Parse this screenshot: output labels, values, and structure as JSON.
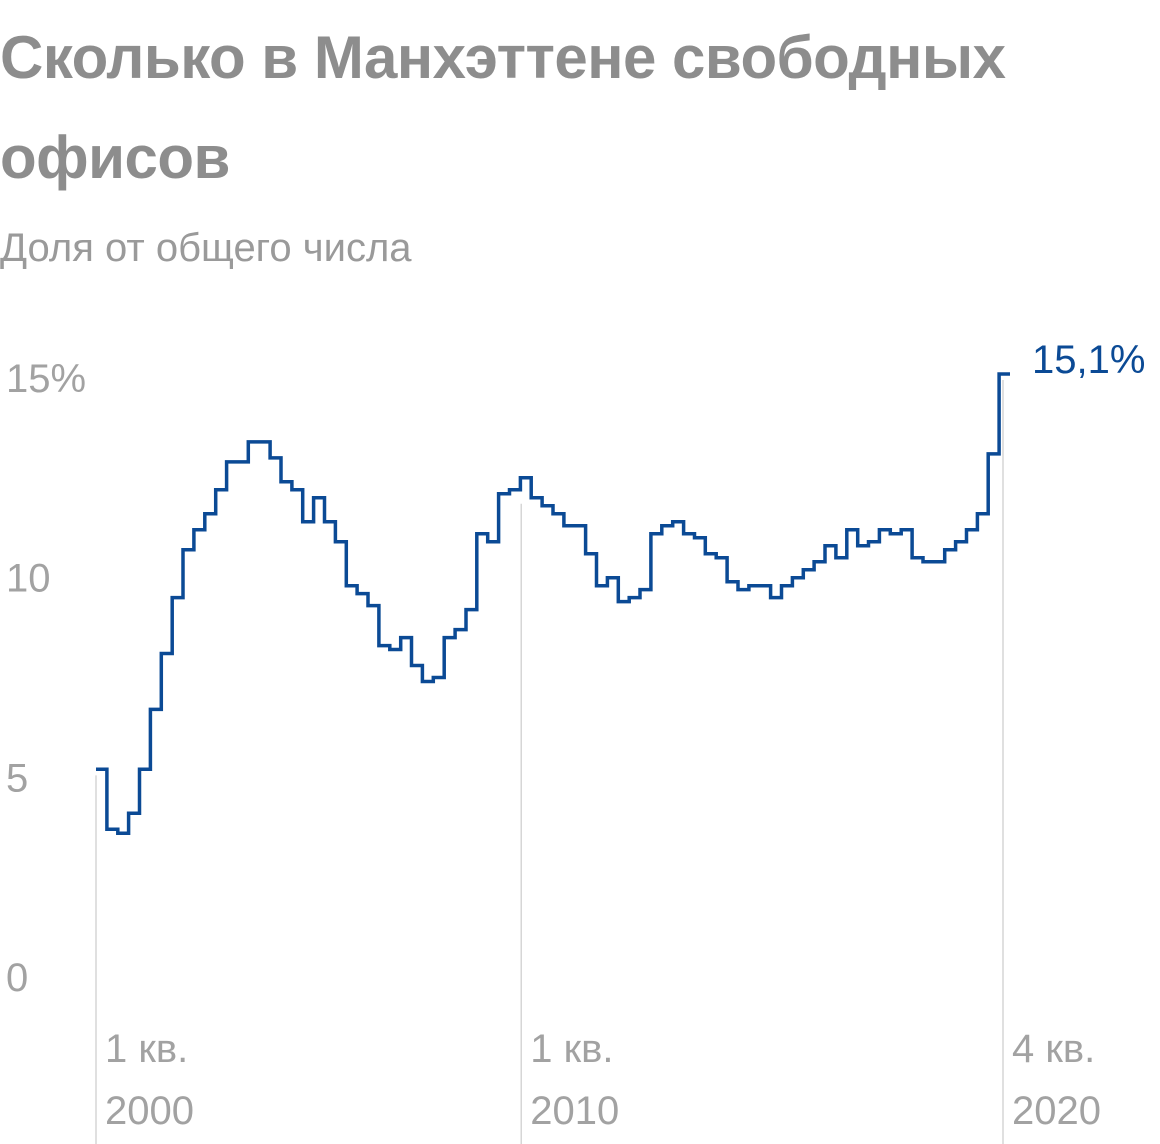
{
  "chart_data": {
    "type": "line",
    "step": true,
    "title": "Сколько в Манхэттене свободных офисов",
    "subtitle": "Доля от общего числа",
    "ylim": [
      0,
      15
    ],
    "y_ticks": [
      "15%",
      "10",
      "5",
      "0"
    ],
    "y_tick_values": [
      15,
      10,
      5,
      0
    ],
    "x_ticks": [
      {
        "quarter_index": 0,
        "line1": "1 кв.",
        "line2": "2000"
      },
      {
        "quarter_index": 40,
        "line1": "1 кв.",
        "line2": "2010"
      },
      {
        "quarter_index": 83,
        "line1": "4 кв.",
        "line2": "2020"
      }
    ],
    "grid": false,
    "series_color": "#0b4a95",
    "axis_color": "#d6d6d6",
    "end_label": "15,1%",
    "series": [
      {
        "name": "",
        "x_start": "1 кв. 2000",
        "x_end": "4 кв. 2020",
        "values": [
          5.2,
          3.7,
          3.6,
          4.1,
          5.2,
          6.7,
          8.1,
          9.5,
          10.7,
          11.2,
          11.6,
          12.2,
          12.9,
          12.9,
          13.4,
          13.4,
          13.0,
          12.4,
          12.2,
          11.4,
          12.0,
          11.4,
          10.9,
          9.8,
          9.6,
          9.3,
          8.3,
          8.2,
          8.5,
          7.8,
          7.4,
          7.5,
          8.5,
          8.7,
          9.2,
          11.1,
          10.9,
          12.1,
          12.2,
          12.5,
          12.0,
          11.8,
          11.6,
          11.3,
          11.3,
          10.6,
          9.8,
          10.0,
          9.4,
          9.5,
          9.7,
          11.1,
          11.3,
          11.4,
          11.1,
          11.0,
          10.6,
          10.5,
          9.9,
          9.7,
          9.8,
          9.8,
          9.5,
          9.8,
          10.0,
          10.2,
          10.4,
          10.8,
          10.5,
          11.2,
          10.8,
          10.9,
          11.2,
          11.1,
          11.2,
          10.5,
          10.4,
          10.4,
          10.7,
          10.9,
          11.2,
          11.6,
          13.1,
          15.1
        ]
      }
    ]
  }
}
